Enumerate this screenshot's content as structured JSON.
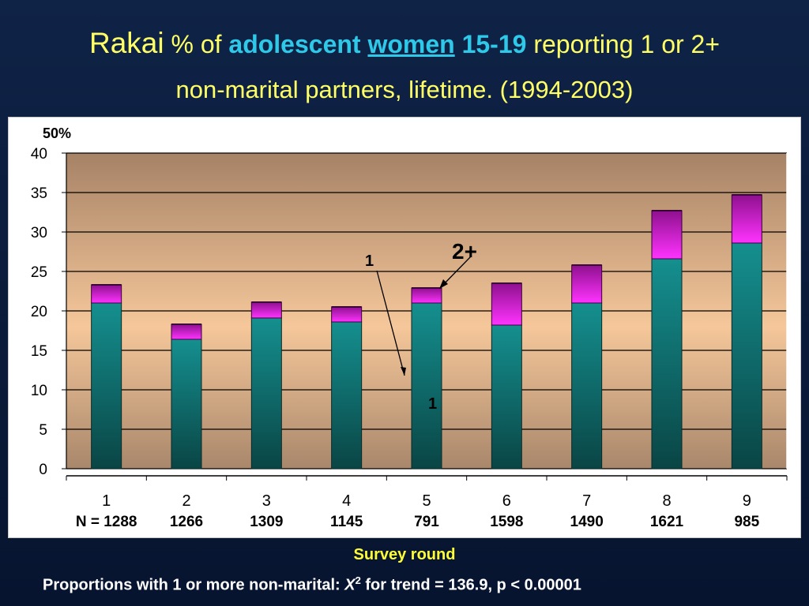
{
  "slide": {
    "title": {
      "rakai": "Rakai",
      "pct_of": "% of",
      "adolescent": "adolescent",
      "women": "women",
      "age": "15-19",
      "reporting": "reporting 1 or 2+",
      "line2": "non-marital partners, lifetime.  (1994-2003)"
    },
    "xlabel": "Survey round",
    "footnote": {
      "pre": "Proportions with 1 or more non-marital: ",
      "stat": "X",
      "sup": "2",
      "post": " for trend = 136.9, p < 0.00001"
    },
    "colors": {
      "background": "#0d1f45",
      "title": "#ffff66",
      "title_accent": "#2ec8e8",
      "xlabel": "#ffff33",
      "bar_one": "#0f7f7f",
      "bar_two_plus": "#e020e0"
    }
  },
  "chart_data": {
    "type": "bar",
    "stacked": true,
    "categories": [
      "1",
      "2",
      "3",
      "4",
      "5",
      "6",
      "7",
      "8",
      "9"
    ],
    "n_labels": [
      "N = 1288",
      "1266",
      "1309",
      "1145",
      "791",
      "1598",
      "1490",
      "1621",
      "985"
    ],
    "series": [
      {
        "name": "1",
        "values": [
          21.0,
          16.4,
          19.1,
          18.6,
          21.0,
          18.2,
          21.0,
          26.6,
          28.6
        ]
      },
      {
        "name": "2+",
        "values": [
          2.3,
          1.9,
          2.0,
          1.9,
          1.9,
          5.3,
          4.8,
          6.1,
          6.1
        ]
      }
    ],
    "ylim": [
      0,
      40
    ],
    "yticks": [
      0,
      5,
      10,
      15,
      20,
      25,
      30,
      35,
      40
    ],
    "ytick_labels": [
      "0",
      "5",
      "10",
      "15",
      "20",
      "25",
      "30",
      "35",
      "40"
    ],
    "y_top_label": "50%",
    "annotations": [
      {
        "text": "1",
        "position": "mid-left"
      },
      {
        "text": "2+",
        "position": "top-center"
      },
      {
        "text": "1",
        "position": "inside-bar-5"
      }
    ],
    "grid": true
  }
}
